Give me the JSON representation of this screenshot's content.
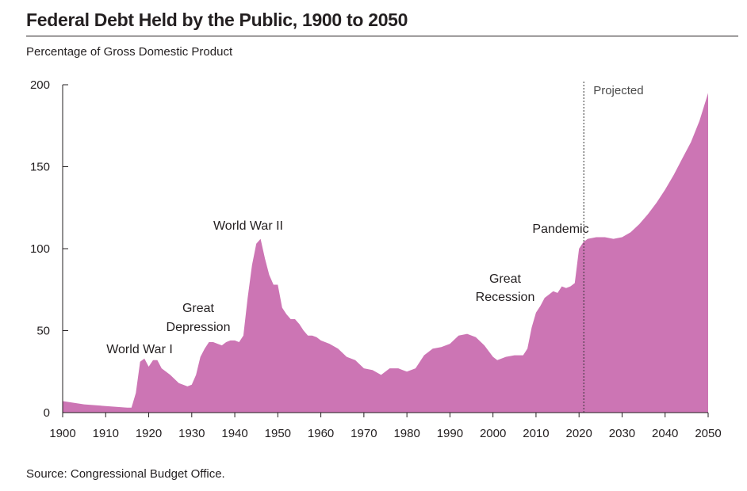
{
  "title": "Federal Debt Held by the Public, 1900 to 2050",
  "subtitle": "Percentage of Gross Domestic Product",
  "source": "Source: Congressional Budget Office.",
  "chart_data": {
    "type": "area",
    "ylabel": "Percentage of Gross Domestic Product",
    "xlim": [
      1900,
      2050
    ],
    "ylim": [
      0,
      200
    ],
    "x_ticks": [
      1900,
      1910,
      1920,
      1930,
      1940,
      1950,
      1960,
      1970,
      1980,
      1990,
      2000,
      2010,
      2020,
      2030,
      2040,
      2050
    ],
    "y_ticks": [
      0,
      50,
      100,
      150,
      200
    ],
    "grid": false,
    "fill_color": "#cc75b4",
    "projection_start": 2020,
    "projection_label": "Projected",
    "annotations": [
      {
        "text": "World War I",
        "x": 1918
      },
      {
        "text": "Great\nDepression",
        "x": 1934
      },
      {
        "text": "World War II",
        "x": 1945
      },
      {
        "text": "Great\nRecession",
        "x": 2009
      },
      {
        "text": "Pandemic",
        "x": 2020
      }
    ],
    "series": [
      {
        "values": [
          [
            1900,
            7
          ],
          [
            1905,
            5
          ],
          [
            1910,
            4
          ],
          [
            1915,
            3
          ],
          [
            1916,
            3
          ],
          [
            1917,
            12
          ],
          [
            1918,
            31
          ],
          [
            1919,
            33
          ],
          [
            1920,
            28
          ],
          [
            1921,
            32
          ],
          [
            1922,
            32
          ],
          [
            1923,
            27
          ],
          [
            1925,
            23
          ],
          [
            1927,
            18
          ],
          [
            1929,
            16
          ],
          [
            1930,
            17
          ],
          [
            1931,
            23
          ],
          [
            1932,
            34
          ],
          [
            1933,
            39
          ],
          [
            1934,
            43
          ],
          [
            1935,
            43
          ],
          [
            1936,
            42
          ],
          [
            1937,
            41
          ],
          [
            1938,
            43
          ],
          [
            1939,
            44
          ],
          [
            1940,
            44
          ],
          [
            1941,
            43
          ],
          [
            1942,
            47
          ],
          [
            1943,
            70
          ],
          [
            1944,
            90
          ],
          [
            1945,
            103
          ],
          [
            1946,
            106
          ],
          [
            1947,
            94
          ],
          [
            1948,
            84
          ],
          [
            1949,
            78
          ],
          [
            1950,
            78
          ],
          [
            1951,
            64
          ],
          [
            1952,
            60
          ],
          [
            1953,
            57
          ],
          [
            1954,
            57
          ],
          [
            1955,
            54
          ],
          [
            1956,
            50
          ],
          [
            1957,
            47
          ],
          [
            1958,
            47
          ],
          [
            1959,
            46
          ],
          [
            1960,
            44
          ],
          [
            1962,
            42
          ],
          [
            1964,
            39
          ],
          [
            1966,
            34
          ],
          [
            1968,
            32
          ],
          [
            1970,
            27
          ],
          [
            1972,
            26
          ],
          [
            1974,
            23
          ],
          [
            1976,
            27
          ],
          [
            1978,
            27
          ],
          [
            1980,
            25
          ],
          [
            1982,
            27
          ],
          [
            1984,
            35
          ],
          [
            1986,
            39
          ],
          [
            1988,
            40
          ],
          [
            1990,
            42
          ],
          [
            1992,
            47
          ],
          [
            1994,
            48
          ],
          [
            1996,
            46
          ],
          [
            1998,
            41
          ],
          [
            2000,
            34
          ],
          [
            2001,
            32
          ],
          [
            2003,
            34
          ],
          [
            2005,
            35
          ],
          [
            2007,
            35
          ],
          [
            2008,
            39
          ],
          [
            2009,
            52
          ],
          [
            2010,
            61
          ],
          [
            2011,
            65
          ],
          [
            2012,
            70
          ],
          [
            2013,
            72
          ],
          [
            2014,
            74
          ],
          [
            2015,
            73
          ],
          [
            2016,
            77
          ],
          [
            2017,
            76
          ],
          [
            2018,
            77
          ],
          [
            2019,
            79
          ],
          [
            2020,
            100
          ],
          [
            2021,
            104
          ],
          [
            2022,
            106
          ],
          [
            2024,
            107
          ],
          [
            2026,
            107
          ],
          [
            2028,
            106
          ],
          [
            2030,
            107
          ],
          [
            2032,
            110
          ],
          [
            2034,
            115
          ],
          [
            2036,
            121
          ],
          [
            2038,
            128
          ],
          [
            2040,
            136
          ],
          [
            2042,
            145
          ],
          [
            2044,
            155
          ],
          [
            2046,
            165
          ],
          [
            2048,
            178
          ],
          [
            2050,
            195
          ]
        ]
      }
    ]
  }
}
